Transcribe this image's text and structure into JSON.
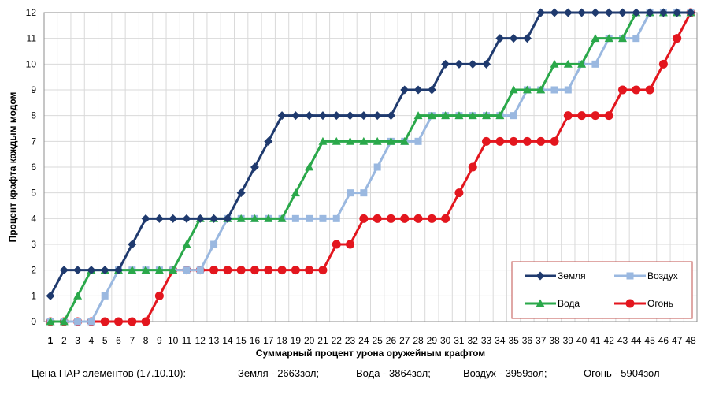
{
  "chart_data": {
    "type": "line",
    "xlabel": "Суммарный процент урона оружейным крафтом",
    "ylabel": "Процент крафта каждым модом",
    "x": [
      1,
      2,
      3,
      4,
      5,
      6,
      7,
      8,
      9,
      10,
      11,
      12,
      13,
      14,
      15,
      16,
      17,
      18,
      19,
      20,
      21,
      22,
      23,
      24,
      25,
      26,
      27,
      28,
      29,
      30,
      31,
      32,
      33,
      34,
      35,
      36,
      37,
      38,
      39,
      40,
      41,
      42,
      43,
      44,
      45,
      46,
      47,
      48
    ],
    "xlim": [
      1,
      48
    ],
    "ylim": [
      0,
      12
    ],
    "yticks": [
      0,
      1,
      2,
      3,
      4,
      5,
      6,
      7,
      8,
      9,
      10,
      11,
      12
    ],
    "grid": true,
    "legend_position": "bottom-right",
    "series": [
      {
        "name": "Земля",
        "color": "#1f3a6e",
        "marker": "diamond",
        "values": [
          1,
          2,
          2,
          2,
          2,
          2,
          3,
          4,
          4,
          4,
          4,
          4,
          4,
          4,
          5,
          6,
          7,
          8,
          8,
          8,
          8,
          8,
          8,
          8,
          8,
          8,
          9,
          9,
          9,
          10,
          10,
          10,
          10,
          11,
          11,
          11,
          12,
          12,
          12,
          12,
          12,
          12,
          12,
          12,
          12,
          12,
          12,
          12
        ]
      },
      {
        "name": "Вода",
        "color": "#2aa84a",
        "marker": "triangle",
        "values": [
          0,
          0,
          1,
          2,
          2,
          2,
          2,
          2,
          2,
          2,
          3,
          4,
          4,
          4,
          4,
          4,
          4,
          4,
          5,
          6,
          7,
          7,
          7,
          7,
          7,
          7,
          7,
          8,
          8,
          8,
          8,
          8,
          8,
          8,
          9,
          9,
          9,
          10,
          10,
          10,
          11,
          11,
          11,
          12,
          12,
          12,
          12,
          12
        ]
      },
      {
        "name": "Воздух",
        "color": "#9ab8e0",
        "marker": "square",
        "values": [
          0,
          0,
          0,
          0,
          1,
          2,
          2,
          2,
          2,
          2,
          2,
          2,
          3,
          4,
          4,
          4,
          4,
          4,
          4,
          4,
          4,
          4,
          5,
          5,
          6,
          7,
          7,
          7,
          8,
          8,
          8,
          8,
          8,
          8,
          8,
          9,
          9,
          9,
          9,
          10,
          10,
          11,
          11,
          11,
          12,
          12,
          12,
          12
        ]
      },
      {
        "name": "Огонь",
        "color": "#e3161e",
        "marker": "circle",
        "values": [
          0,
          0,
          0,
          0,
          0,
          0,
          0,
          0,
          1,
          2,
          2,
          2,
          2,
          2,
          2,
          2,
          2,
          2,
          2,
          2,
          2,
          3,
          3,
          4,
          4,
          4,
          4,
          4,
          4,
          4,
          5,
          6,
          7,
          7,
          7,
          7,
          7,
          7,
          8,
          8,
          8,
          8,
          9,
          9,
          9,
          10,
          11,
          12
        ]
      }
    ]
  },
  "footer": {
    "title": "Цена ПАР элементов (17.10.10):",
    "earth": "Земля - 2663зол;",
    "water": "Вода - 3864зол;",
    "air": "Воздух - 3959зол;",
    "fire": "Огонь - 5904зол"
  }
}
